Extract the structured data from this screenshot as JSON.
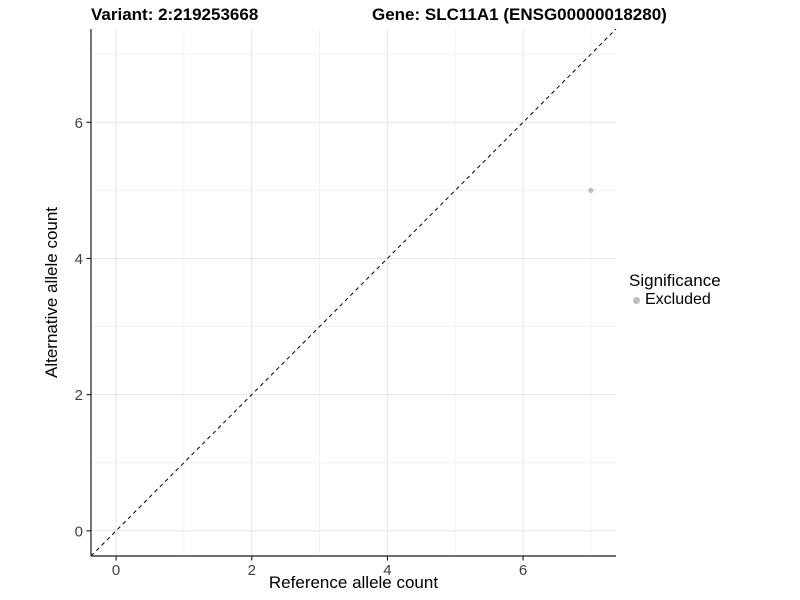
{
  "title": {
    "variant": "Variant: 2:219253668",
    "gene": "Gene: SLC11A1 (ENSG00000018280)"
  },
  "legend": {
    "title": "Significance",
    "items": [
      {
        "label": "Excluded",
        "color": "#bebebe"
      }
    ]
  },
  "chart_data": {
    "type": "scatter",
    "title": "Variant: 2:219253668   Gene: SLC11A1 (ENSG00000018280)",
    "xlabel": "Reference allele count",
    "ylabel": "Alternative allele count",
    "xlim": [
      -0.37,
      7.37
    ],
    "ylim": [
      -0.37,
      7.37
    ],
    "x_ticks": [
      0,
      2,
      4,
      6
    ],
    "y_ticks": [
      0,
      2,
      4,
      6
    ],
    "minor_gridlines": [
      1,
      3,
      5,
      7
    ],
    "grid": true,
    "legend_position": "right",
    "legend_title": "Significance",
    "series": [
      {
        "name": "Excluded",
        "color": "#bebebe",
        "points": [
          {
            "x": 7,
            "y": 5
          }
        ]
      }
    ],
    "reference_line": {
      "type": "identity",
      "style": "dashed",
      "color": "#000000"
    }
  },
  "colors": {
    "background": "#ffffff",
    "major_grid": "#e6e6e6",
    "minor_grid": "#f2f2f2",
    "axis_line": "#1a1a1a",
    "tick_label": "#404040",
    "point": "#bebebe"
  }
}
